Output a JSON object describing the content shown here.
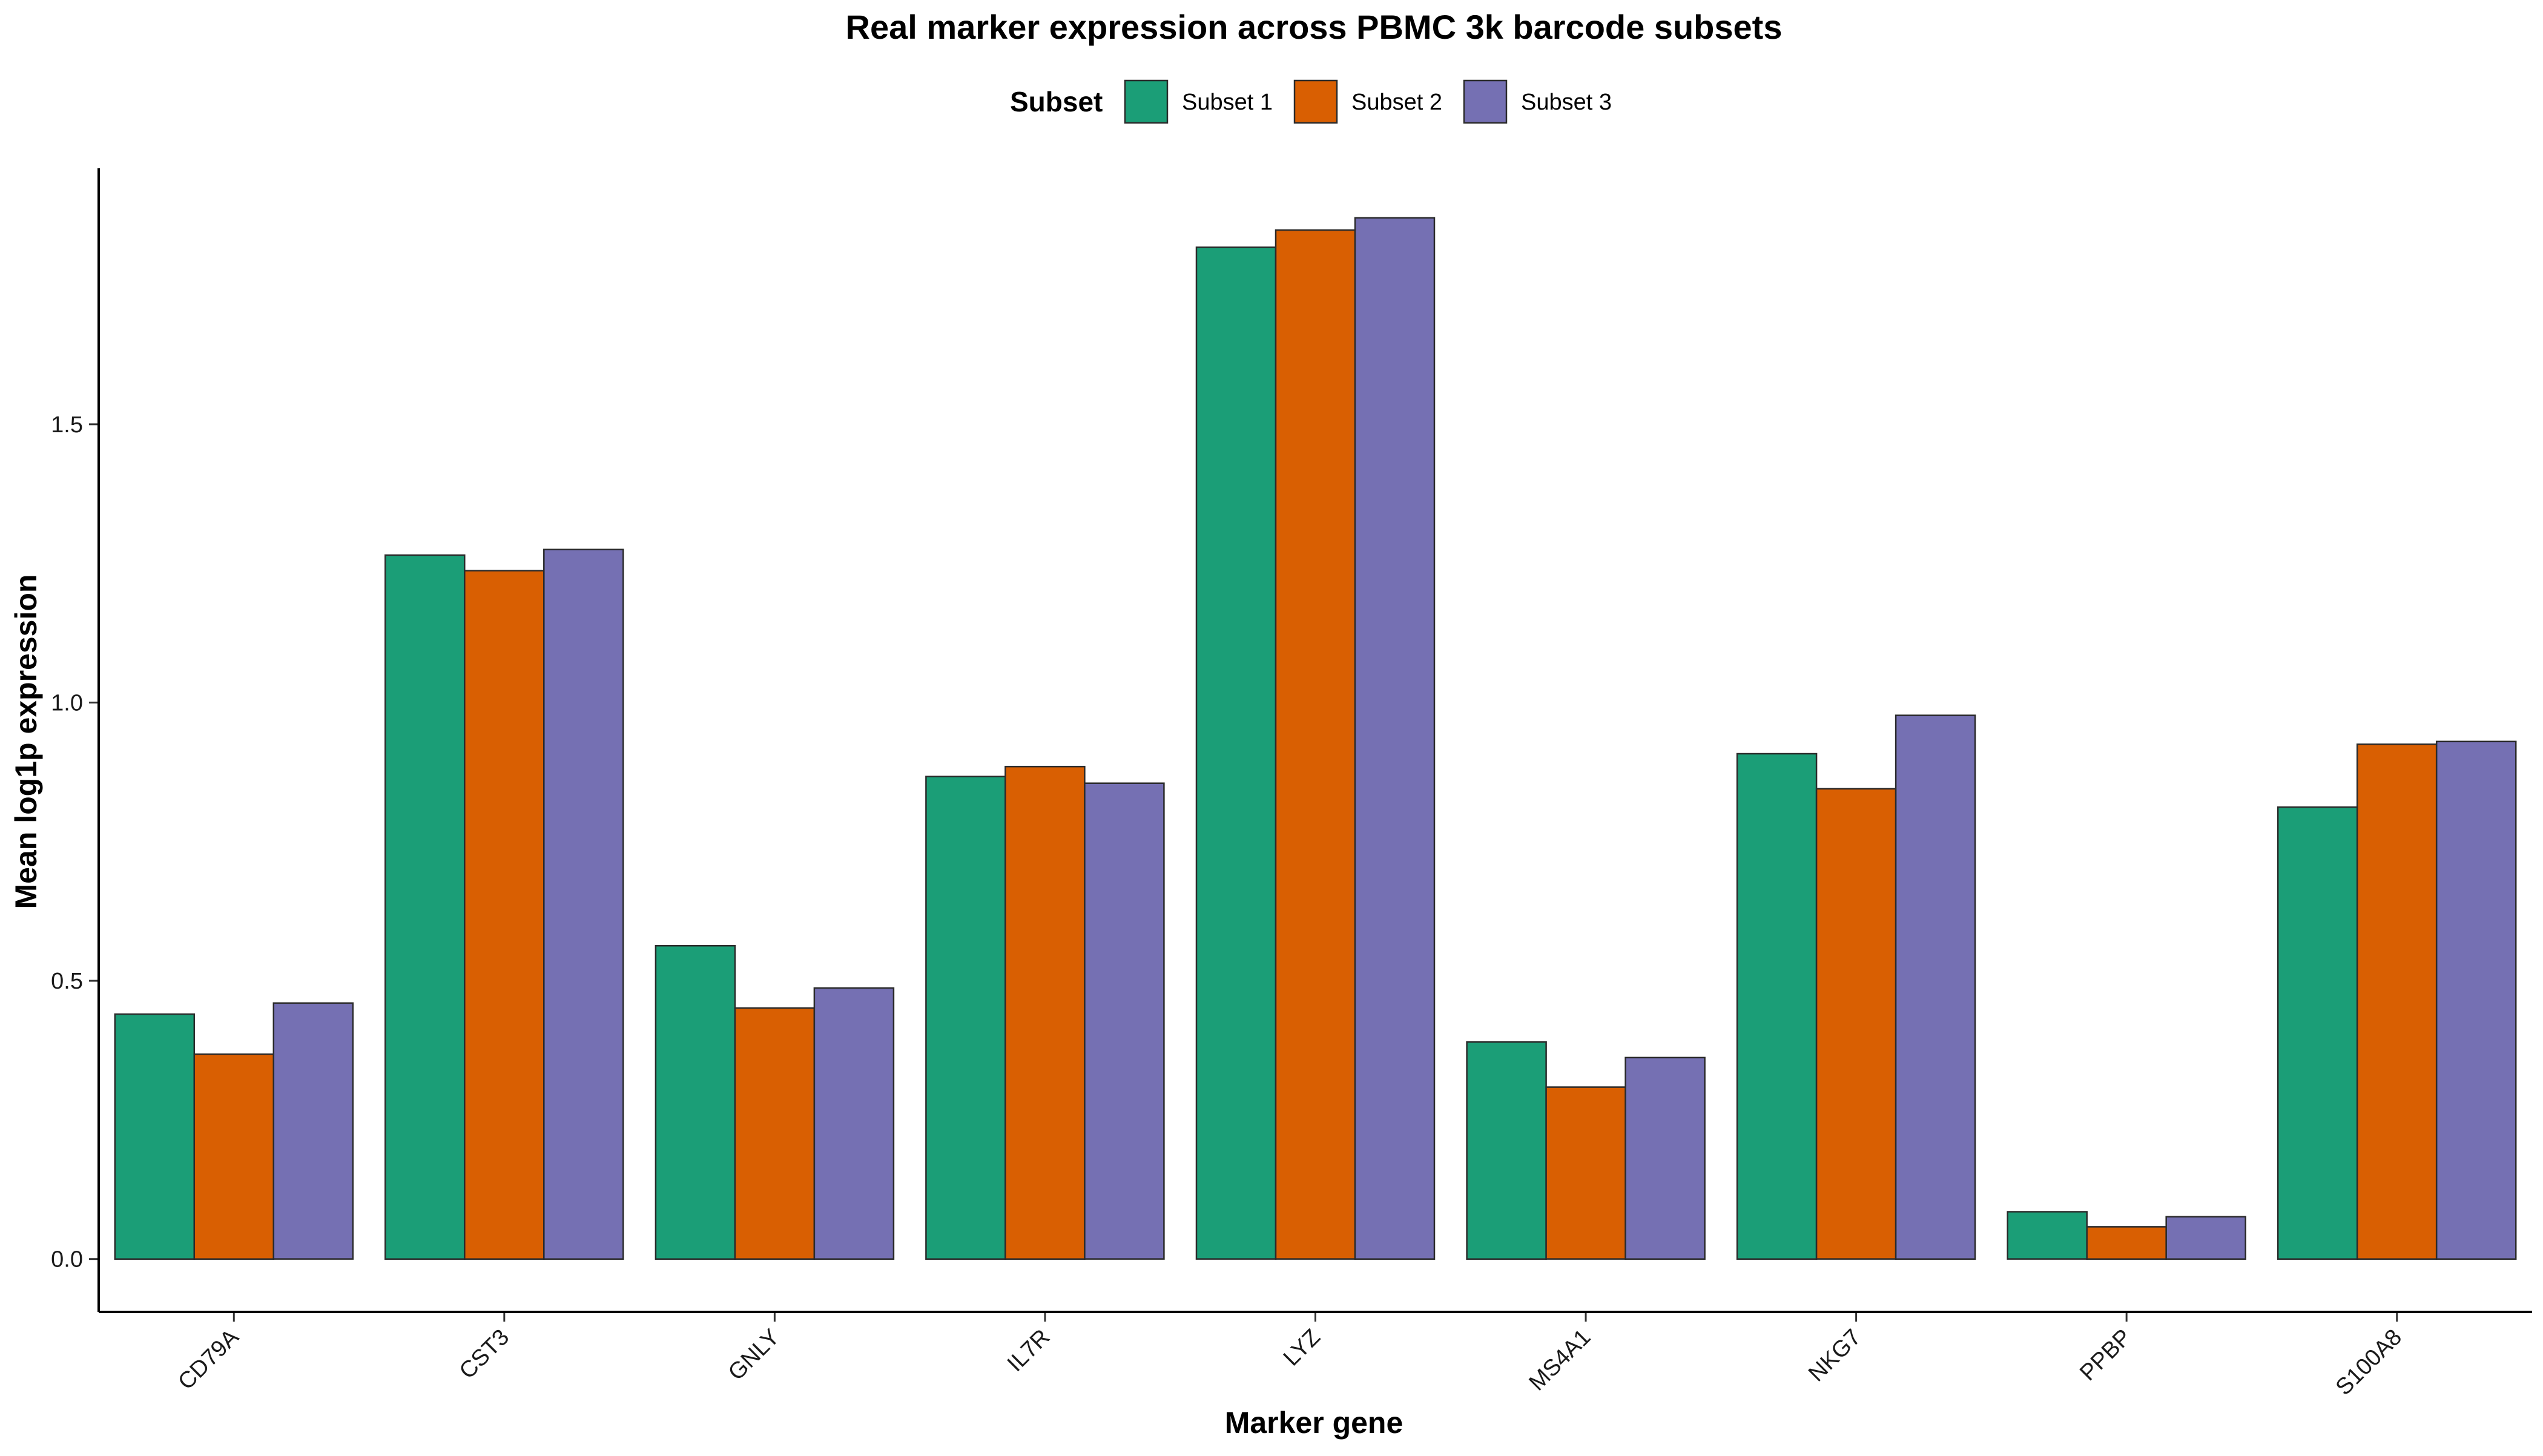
{
  "chart_data": {
    "type": "bar",
    "title": "Real marker expression across PBMC 3k barcode subsets",
    "xlabel": "Marker gene",
    "ylabel": "Mean log1p expression",
    "legend_title": "Subset",
    "legend_position": "top",
    "categories": [
      "CD79A",
      "CST3",
      "GNLY",
      "IL7R",
      "LYZ",
      "MS4A1",
      "NKG7",
      "PPBP",
      "S100A8"
    ],
    "series": [
      {
        "name": "Subset 1",
        "color": "#1b9e77",
        "values": [
          0.44,
          1.265,
          0.563,
          0.867,
          1.818,
          0.39,
          0.908,
          0.085,
          0.812
        ]
      },
      {
        "name": "Subset 2",
        "color": "#d95f02",
        "values": [
          0.368,
          1.237,
          0.451,
          0.885,
          1.849,
          0.309,
          0.845,
          0.058,
          0.925
        ]
      },
      {
        "name": "Subset 3",
        "color": "#7570b3",
        "values": [
          0.46,
          1.275,
          0.487,
          0.855,
          1.871,
          0.362,
          0.977,
          0.076,
          0.93
        ]
      }
    ],
    "ylim": [
      -0.095,
      1.96
    ],
    "yticks": [
      0.0,
      0.5,
      1.0,
      1.5
    ],
    "ytick_labels": [
      "0.0",
      "0.5",
      "1.0",
      "1.5"
    ],
    "grid": false
  }
}
